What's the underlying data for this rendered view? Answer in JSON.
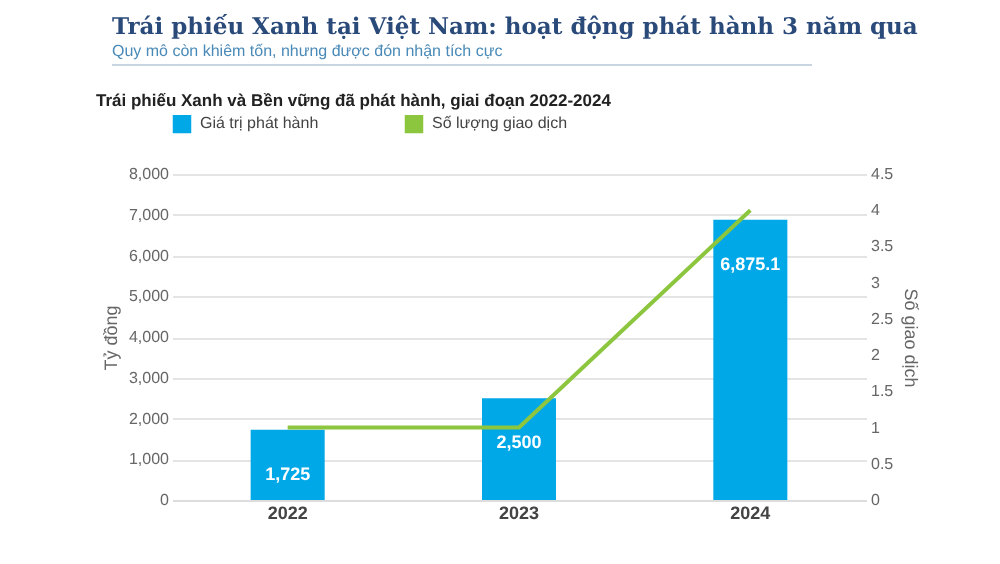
{
  "chart_data": {
    "type": "bar",
    "title": "Trái phiếu Xanh tại Việt Nam: hoạt động phát hành 3 năm qua",
    "subtitle": "Quy mô còn khiêm tốn, nhưng được đón nhận tích cực",
    "annotations": [
      "Trái phiếu Xanh và Bền vững đã phát hành, giai đoạn 2022-2024"
    ],
    "categories": [
      "2022",
      "2023",
      "2024"
    ],
    "series": [
      {
        "name": "Giá trị phát hành",
        "type": "bar",
        "color": "#00a8e8",
        "values": [
          1725,
          2500,
          6875.1
        ],
        "value_labels": [
          "1,725",
          "2,500",
          "6,875.1"
        ]
      },
      {
        "name": "Số lượng giao dịch",
        "type": "line",
        "axis": "y2",
        "color": "#8cc63f",
        "values": [
          1,
          1,
          4
        ]
      }
    ],
    "ylabel": "Tỷ đồng",
    "y2label": "Số giao dịch",
    "ylim": [
      0,
      8000
    ],
    "yticks": [
      0,
      {
        "value": 1000,
        "label": "1,000"
      },
      {
        "value": 2000,
        "label": "2,000"
      },
      {
        "value": 3000,
        "label": "3,000"
      },
      {
        "value": 4000,
        "label": "4,000"
      },
      {
        "value": 5000,
        "label": "5,000"
      },
      {
        "value": 6000,
        "label": "6,000"
      },
      {
        "value": 7000,
        "label": "7,000"
      },
      {
        "value": 8000,
        "label": "8,000"
      }
    ],
    "y2lim": [
      0,
      4.5
    ],
    "y2ticks": [
      0,
      0.5,
      1,
      1.5,
      2,
      2.5,
      3,
      3.5,
      4,
      4.5
    ],
    "grid": "y",
    "legend": "top",
    "marker": "none",
    "line_style": "solid"
  }
}
